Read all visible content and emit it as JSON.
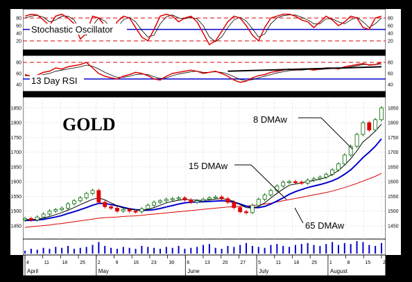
{
  "chart_data": {
    "type": "line",
    "title": "GOLD",
    "colors": {
      "price_up": "#ffffff",
      "price_down": "#dd0000",
      "ma_fast": "#000000",
      "ma_mid": "#0000cc",
      "ma_slow": "#dd0000",
      "osc_main": "#dd0000",
      "osc_signal": "#000000",
      "ref_line": "#0000cc",
      "dashed": "#dd0000",
      "volume": "#0000cc"
    },
    "x": {
      "ticks": [
        "4",
        "11",
        "18",
        "25",
        "2",
        "9",
        "16",
        "23",
        "30",
        "6",
        "13",
        "20",
        "27",
        "5",
        "11",
        "18",
        "25",
        "1",
        "8",
        "15",
        "22"
      ],
      "months": [
        "April",
        "May",
        "June",
        "July",
        "August"
      ]
    },
    "stochastic": {
      "label": "Stochastic Oscillator",
      "yticks": [
        "80",
        "60",
        "40",
        "20"
      ],
      "ylim": [
        0,
        100
      ],
      "reference": 50,
      "dashed_levels": [
        80,
        20
      ],
      "k": [
        85,
        90,
        88,
        75,
        60,
        85,
        90,
        80,
        65,
        25,
        40,
        85,
        80,
        60,
        40,
        70,
        85,
        80,
        55,
        30,
        20,
        50,
        85,
        90,
        85,
        70,
        80,
        85,
        70,
        40,
        10,
        20,
        45,
        70,
        85,
        80,
        60,
        35,
        20,
        55,
        80,
        85,
        90,
        90,
        85,
        75,
        70,
        55,
        70,
        85,
        75,
        60,
        70,
        85,
        80,
        55,
        50,
        80,
        85
      ],
      "d": [
        80,
        85,
        87,
        82,
        70,
        75,
        85,
        85,
        75,
        45,
        35,
        60,
        80,
        72,
        55,
        55,
        75,
        82,
        70,
        48,
        30,
        35,
        65,
        83,
        88,
        80,
        78,
        82,
        78,
        60,
        30,
        18,
        30,
        55,
        75,
        82,
        72,
        52,
        30,
        38,
        65,
        80,
        86,
        88,
        88,
        82,
        75,
        65,
        65,
        78,
        78,
        70,
        65,
        75,
        82,
        70,
        55,
        65,
        80
      ]
    },
    "rsi": {
      "label": "13 Day RSI",
      "yticks": [
        "80",
        "60",
        "40"
      ],
      "ylim": [
        30,
        90
      ],
      "reference": 50,
      "dashed_levels": [
        80
      ],
      "values": [
        58,
        55,
        57,
        62,
        64,
        70,
        68,
        72,
        74,
        76,
        80,
        70,
        60,
        55,
        52,
        50,
        55,
        58,
        62,
        60,
        56,
        50,
        48,
        55,
        60,
        62,
        64,
        66,
        64,
        60,
        62,
        64,
        60,
        55,
        48,
        44,
        46,
        52,
        56,
        58,
        62,
        64,
        66,
        68,
        66,
        68,
        68,
        66,
        68,
        70,
        70,
        68,
        72,
        74,
        76,
        78,
        75,
        76,
        80
      ],
      "signal": [
        56,
        56,
        56,
        58,
        60,
        64,
        66,
        68,
        70,
        72,
        75,
        73,
        68,
        62,
        57,
        53,
        53,
        55,
        58,
        59,
        58,
        54,
        51,
        52,
        56,
        59,
        61,
        63,
        64,
        62,
        62,
        63,
        62,
        59,
        54,
        49,
        47,
        49,
        52,
        55,
        58,
        61,
        63,
        65,
        66,
        66,
        67,
        67,
        67,
        68,
        69,
        69,
        70,
        72,
        74,
        76,
        76,
        76,
        77
      ],
      "trendline": [
        [
          33,
          64
        ],
        [
          58,
          72
        ]
      ]
    },
    "price": {
      "yticks": [
        "1850",
        "1800",
        "1750",
        "1700",
        "1650",
        "1600",
        "1550",
        "1500",
        "1450"
      ],
      "ylim": [
        1410,
        1880
      ],
      "close": [
        1475,
        1470,
        1480,
        1490,
        1500,
        1505,
        1510,
        1525,
        1535,
        1545,
        1560,
        1570,
        1530,
        1515,
        1510,
        1500,
        1505,
        1500,
        1498,
        1508,
        1520,
        1530,
        1535,
        1540,
        1542,
        1545,
        1538,
        1530,
        1535,
        1540,
        1545,
        1548,
        1542,
        1530,
        1512,
        1498,
        1495,
        1520,
        1540,
        1555,
        1570,
        1585,
        1598,
        1600,
        1598,
        1595,
        1605,
        1610,
        1615,
        1625,
        1640,
        1660,
        1690,
        1720,
        1760,
        1800,
        1775,
        1810,
        1850
      ],
      "open": [
        1470,
        1475,
        1470,
        1480,
        1490,
        1500,
        1505,
        1510,
        1525,
        1535,
        1545,
        1560,
        1570,
        1530,
        1515,
        1510,
        1500,
        1505,
        1500,
        1498,
        1508,
        1520,
        1530,
        1535,
        1540,
        1542,
        1545,
        1538,
        1530,
        1535,
        1540,
        1545,
        1548,
        1542,
        1530,
        1512,
        1498,
        1495,
        1520,
        1540,
        1555,
        1570,
        1585,
        1598,
        1600,
        1598,
        1595,
        1605,
        1610,
        1615,
        1625,
        1640,
        1660,
        1690,
        1720,
        1760,
        1800,
        1775,
        1810
      ],
      "ma8": [
        1472,
        1471,
        1473,
        1476,
        1482,
        1488,
        1495,
        1503,
        1512,
        1522,
        1531,
        1540,
        1545,
        1538,
        1528,
        1518,
        1510,
        1507,
        1504,
        1503,
        1506,
        1512,
        1520,
        1528,
        1533,
        1537,
        1540,
        1538,
        1537,
        1536,
        1538,
        1541,
        1542,
        1540,
        1533,
        1522,
        1512,
        1510,
        1516,
        1528,
        1545,
        1560,
        1575,
        1588,
        1592,
        1596,
        1600,
        1604,
        1608,
        1614,
        1624,
        1638,
        1656,
        1678,
        1705,
        1735,
        1752,
        1772,
        1795
      ],
      "ma15": [
        1468,
        1469,
        1470,
        1472,
        1476,
        1480,
        1485,
        1492,
        1498,
        1505,
        1512,
        1520,
        1526,
        1526,
        1522,
        1518,
        1513,
        1508,
        1505,
        1503,
        1503,
        1505,
        1509,
        1514,
        1519,
        1524,
        1528,
        1530,
        1531,
        1532,
        1533,
        1534,
        1535,
        1534,
        1530,
        1524,
        1517,
        1512,
        1512,
        1516,
        1524,
        1534,
        1545,
        1557,
        1566,
        1573,
        1580,
        1585,
        1590,
        1596,
        1603,
        1612,
        1625,
        1640,
        1660,
        1682,
        1700,
        1720,
        1745
      ],
      "ma65": [
        1445,
        1447,
        1449,
        1451,
        1453,
        1456,
        1458,
        1461,
        1464,
        1467,
        1470,
        1473,
        1476,
        1478,
        1479,
        1480,
        1482,
        1483,
        1484,
        1486,
        1488,
        1490,
        1492,
        1494,
        1496,
        1498,
        1500,
        1502,
        1504,
        1506,
        1508,
        1510,
        1512,
        1514,
        1515,
        1516,
        1517,
        1519,
        1521,
        1524,
        1527,
        1531,
        1535,
        1539,
        1543,
        1547,
        1551,
        1555,
        1559,
        1563,
        1568,
        1574,
        1580,
        1587,
        1594,
        1602,
        1610,
        1618,
        1628
      ],
      "annotations": [
        "8 DMAw",
        "15 DMAw",
        "65 DMAw"
      ]
    },
    "volume": {
      "values": [
        3,
        5,
        4,
        6,
        5,
        7,
        6,
        8,
        5,
        6,
        7,
        9,
        12,
        8,
        6,
        5,
        7,
        6,
        5,
        8,
        7,
        6,
        5,
        7,
        6,
        8,
        5,
        6,
        7,
        9,
        10,
        6,
        5,
        8,
        7,
        9,
        11,
        8,
        7,
        6,
        9,
        10,
        8,
        7,
        9,
        10,
        11,
        9,
        8,
        10,
        12,
        9,
        11,
        10,
        13,
        12,
        9,
        8,
        11
      ]
    }
  }
}
